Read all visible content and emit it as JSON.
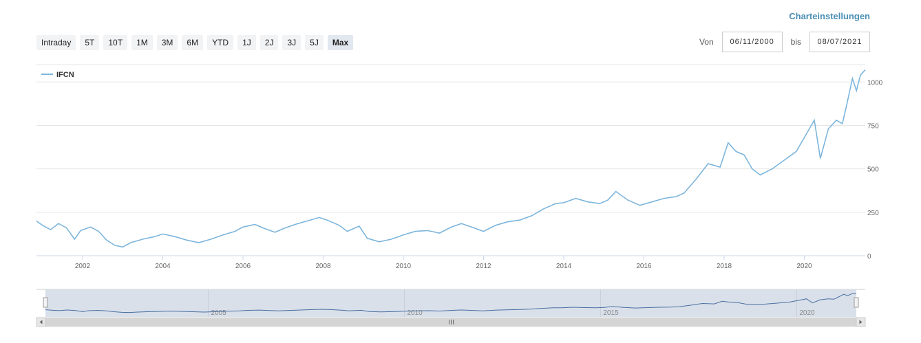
{
  "header": {
    "settings_label": "Charteinstellungen"
  },
  "range_buttons": [
    {
      "label": "Intraday"
    },
    {
      "label": "5T"
    },
    {
      "label": "10T"
    },
    {
      "label": "1M"
    },
    {
      "label": "3M"
    },
    {
      "label": "6M"
    },
    {
      "label": "YTD"
    },
    {
      "label": "1J"
    },
    {
      "label": "2J"
    },
    {
      "label": "3J"
    },
    {
      "label": "5J"
    },
    {
      "label": "Max",
      "active": true
    }
  ],
  "date_range": {
    "from_label": "Von",
    "from_value": "06/11/2000",
    "to_label": "bis",
    "to_value": "08/07/2021"
  },
  "colors": {
    "line": "#7cb5dc",
    "navigator_line": "#4a6fa1",
    "navigator_mask": "#d9e0ea",
    "scrollbar": "#d5d5d5"
  },
  "chart_data": {
    "type": "line",
    "title": "",
    "xlabel": "",
    "ylabel": "",
    "legend": {
      "position": "top-left"
    },
    "grid": true,
    "ylim": [
      0,
      1100
    ],
    "xlim": [
      2000.85,
      2021.52
    ],
    "yticks": [
      0,
      250,
      500,
      750,
      1000
    ],
    "xticks": [
      2002,
      2004,
      2006,
      2008,
      2010,
      2012,
      2014,
      2016,
      2018,
      2020
    ],
    "series": [
      {
        "name": "IFCN",
        "x": [
          2000.85,
          2001.0,
          2001.2,
          2001.4,
          2001.6,
          2001.8,
          2001.95,
          2002.2,
          2002.4,
          2002.6,
          2002.8,
          2003.0,
          2003.2,
          2003.5,
          2003.8,
          2004.0,
          2004.3,
          2004.6,
          2004.9,
          2005.2,
          2005.5,
          2005.8,
          2006.0,
          2006.3,
          2006.5,
          2006.8,
          2007.0,
          2007.3,
          2007.6,
          2007.9,
          2008.1,
          2008.4,
          2008.6,
          2008.9,
          2009.1,
          2009.4,
          2009.7,
          2010.0,
          2010.3,
          2010.6,
          2010.9,
          2011.2,
          2011.45,
          2011.7,
          2012.0,
          2012.3,
          2012.6,
          2012.9,
          2013.2,
          2013.5,
          2013.8,
          2014.0,
          2014.3,
          2014.6,
          2014.9,
          2015.1,
          2015.3,
          2015.6,
          2015.9,
          2016.2,
          2016.5,
          2016.8,
          2017.0,
          2017.3,
          2017.6,
          2017.9,
          2018.1,
          2018.3,
          2018.5,
          2018.7,
          2018.9,
          2019.2,
          2019.5,
          2019.8,
          2020.0,
          2020.1,
          2020.25,
          2020.4,
          2020.6,
          2020.8,
          2020.95,
          2021.05,
          2021.2,
          2021.3,
          2021.4,
          2021.52
        ],
        "values": [
          200,
          175,
          150,
          185,
          160,
          95,
          145,
          165,
          140,
          90,
          60,
          50,
          75,
          95,
          110,
          125,
          110,
          90,
          75,
          95,
          120,
          140,
          165,
          180,
          160,
          135,
          155,
          180,
          200,
          220,
          205,
          175,
          140,
          170,
          100,
          80,
          95,
          120,
          140,
          145,
          130,
          165,
          185,
          165,
          140,
          175,
          195,
          205,
          230,
          270,
          300,
          305,
          330,
          310,
          300,
          320,
          370,
          320,
          290,
          310,
          330,
          340,
          360,
          440,
          530,
          510,
          650,
          600,
          580,
          500,
          465,
          500,
          550,
          600,
          680,
          720,
          780,
          560,
          730,
          780,
          760,
          860,
          1020,
          950,
          1040,
          1070
        ]
      }
    ],
    "navigator": {
      "xticks": [
        2005,
        2010,
        2015,
        2020
      ]
    }
  }
}
